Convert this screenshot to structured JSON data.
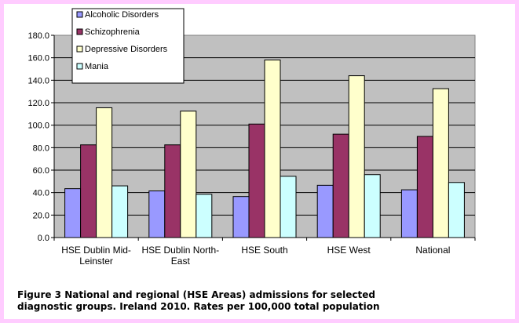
{
  "chart_data": {
    "type": "bar",
    "categories": [
      [
        "HSE Dublin Mid-",
        "Leinster"
      ],
      [
        "HSE Dublin North-",
        "East"
      ],
      [
        "HSE South"
      ],
      [
        "HSE West"
      ],
      [
        "National"
      ]
    ],
    "series": [
      {
        "name": "Alcoholic Disorders",
        "color": "#9999ff",
        "values": [
          43.5,
          41.5,
          36.5,
          46.5,
          42.5
        ]
      },
      {
        "name": "Schizophrenia",
        "color": "#993366",
        "values": [
          82.5,
          82.5,
          101.0,
          92.0,
          90.0
        ]
      },
      {
        "name": "Depressive Disorders",
        "color": "#ffffcc",
        "values": [
          115.5,
          112.5,
          158.0,
          144.0,
          132.5
        ]
      },
      {
        "name": "Mania",
        "color": "#ccffff",
        "values": [
          46.0,
          38.5,
          54.5,
          56.0,
          49.0
        ]
      }
    ],
    "ylim": [
      0,
      180
    ],
    "ytick_step": 20,
    "ytick_labels": [
      "0.0",
      "20.0",
      "40.0",
      "60.0",
      "80.0",
      "100.0",
      "120.0",
      "140.0",
      "160.0",
      "180.0"
    ],
    "plot_background": "#c0c0c0",
    "grid": true,
    "legend_position": "top-left"
  },
  "caption": {
    "line1": "Figure 3   National and regional (HSE Areas) admissions for selected",
    "line2": "diagnostic groups.  Ireland 2010.  Rates per 100,000 total population"
  }
}
